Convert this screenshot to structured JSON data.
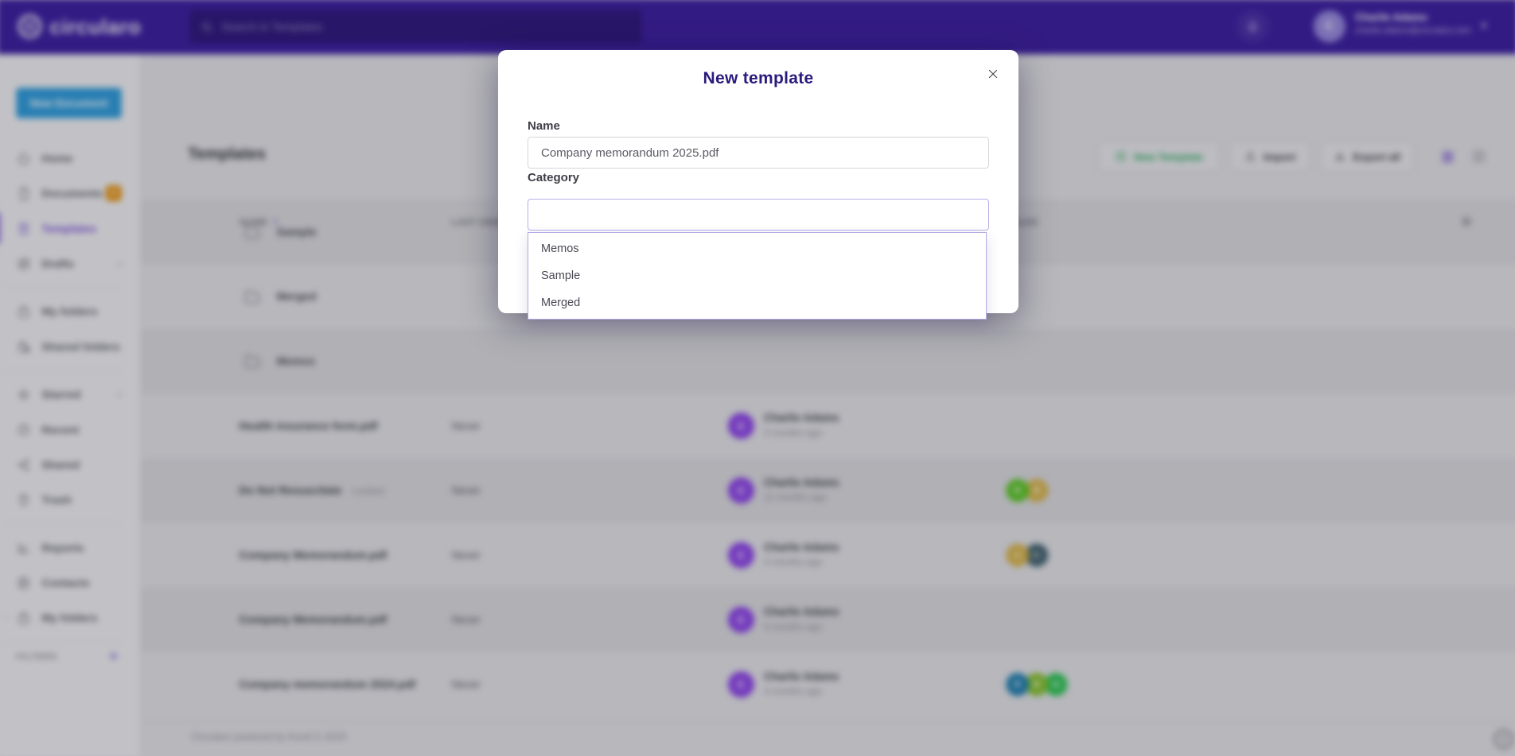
{
  "topbar": {
    "brand": "circularo",
    "search_placeholder": "Search in Templates",
    "user": {
      "name": "Charlie Adams",
      "email": "charlie.adams@circularo.com",
      "avatar_initial": "C"
    }
  },
  "sidebar": {
    "new_document_label": "New Document",
    "groups": [
      [
        {
          "label": "Home",
          "icon": "home-icon"
        },
        {
          "label": "Documents",
          "icon": "document-icon",
          "badge": "6"
        },
        {
          "label": "Templates",
          "icon": "template-icon",
          "active": true
        },
        {
          "label": "Drafts",
          "icon": "drafts-icon",
          "chevron": true
        }
      ],
      [
        {
          "label": "My folders",
          "icon": "folder-bag-icon"
        },
        {
          "label": "Shared folders",
          "icon": "shared-folder-icon"
        }
      ],
      [
        {
          "label": "Starred",
          "icon": "star-icon",
          "chevron": true
        },
        {
          "label": "Recent",
          "icon": "clock-icon"
        },
        {
          "label": "Shared",
          "icon": "share-icon"
        },
        {
          "label": "Trash",
          "icon": "trash-icon"
        }
      ],
      [
        {
          "label": "Reports",
          "icon": "reports-icon"
        },
        {
          "label": "Contacts",
          "icon": "contacts-icon"
        },
        {
          "label": "My folders",
          "icon": "folder-bag-icon",
          "collapse_chevron": true
        }
      ]
    ],
    "filters_label": "FILTERS"
  },
  "main": {
    "title": "Templates",
    "toolbar": {
      "new_template": "New Template",
      "import": "Import",
      "export_all": "Export all"
    }
  },
  "table": {
    "headers": {
      "name": "NAME",
      "last_used": "LAST USED",
      "roles": "ROLES"
    },
    "rows": [
      {
        "type": "folder",
        "name": "Sample"
      },
      {
        "type": "folder",
        "name": "Merged"
      },
      {
        "type": "folder",
        "name": "Memos"
      },
      {
        "type": "file",
        "name": "Health insurance form.pdf",
        "last_used": "Never",
        "owner": "Charlie Adams",
        "modified": "3 months ago",
        "badges": []
      },
      {
        "type": "file",
        "name": "Do Not Resuscitate",
        "tag": "Locked",
        "last_used": "Never",
        "owner": "Charlie Adams",
        "modified": "11 months ago",
        "badges": [
          {
            "letter": "R",
            "color": "#5bc724"
          },
          {
            "letter": "R",
            "color": "#d9b64a"
          }
        ]
      },
      {
        "type": "file",
        "name": "Company Memorandum.pdf",
        "last_used": "Never",
        "owner": "Charlie Adams",
        "modified": "4 months ago",
        "badges": [
          {
            "letter": "C",
            "color": "#d9b64a"
          },
          {
            "letter": "C",
            "color": "#41626e"
          }
        ]
      },
      {
        "type": "file",
        "name": "Company Memorandum.pdf",
        "last_used": "Never",
        "owner": "Charlie Adams",
        "modified": "4 months ago",
        "badges": []
      },
      {
        "type": "file",
        "name": "Company memorandum 2024.pdf",
        "last_used": "Never",
        "owner": "Charlie Adams",
        "modified": "4 months ago",
        "badges": [
          {
            "letter": "R",
            "color": "#1e7fae"
          },
          {
            "letter": "R",
            "color": "#86c22c"
          },
          {
            "letter": "G",
            "color": "#2dc653"
          }
        ]
      }
    ]
  },
  "modal": {
    "title": "New template",
    "name_label": "Name",
    "name_value": "Company memorandum 2025.pdf",
    "category_label": "Category",
    "category_value": "",
    "options": [
      "Memos",
      "Sample",
      "Merged"
    ]
  },
  "footer": {
    "text": "Circularo powered by Korel © 2025",
    "help_glyph": "?"
  },
  "colors": {
    "brand_purple": "#3b1d9f",
    "accent_purple": "#7a4fd8",
    "new_doc_blue": "#2d9cdb",
    "badge_orange": "#e8930c",
    "new_template_green": "#2eac5f",
    "avatar_purple": "#8e44e8"
  }
}
